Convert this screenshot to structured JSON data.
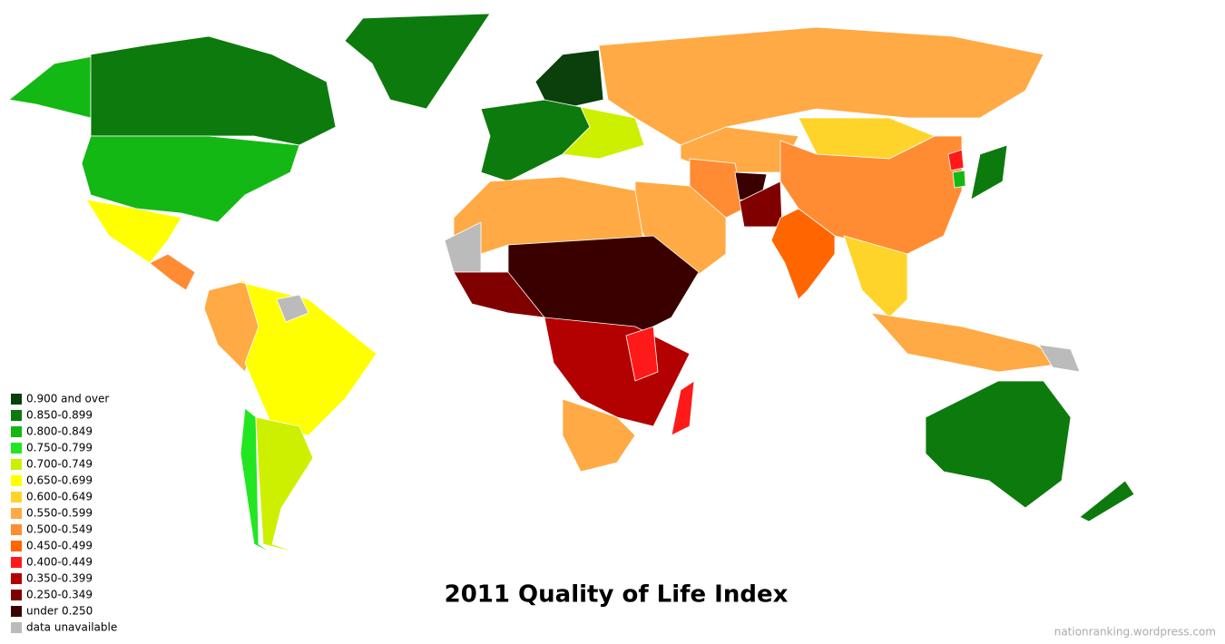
{
  "title": "2011 Quality of Life Index",
  "legend": [
    {
      "label": "0.900 and over",
      "color": "#0b3f0b"
    },
    {
      "label": "0.850-0.899",
      "color": "#0d7a0d"
    },
    {
      "label": "0.800-0.849",
      "color": "#14b814"
    },
    {
      "label": "0.750-0.799",
      "color": "#22e622"
    },
    {
      "label": "0.700-0.749",
      "color": "#ccf000"
    },
    {
      "label": "0.650-0.699",
      "color": "#ffff00"
    },
    {
      "label": "0.600-0.649",
      "color": "#ffd42a"
    },
    {
      "label": "0.550-0.599",
      "color": "#ffaa44"
    },
    {
      "label": "0.500-0.549",
      "color": "#ff8c33"
    },
    {
      "label": "0.450-0.499",
      "color": "#ff6600"
    },
    {
      "label": "0.400-0.449",
      "color": "#ff1a1a"
    },
    {
      "label": "0.350-0.399",
      "color": "#b30000"
    },
    {
      "label": "0.250-0.349",
      "color": "#800000"
    },
    {
      "label": "under 0.250",
      "color": "#3a0000"
    },
    {
      "label": "data unavailable",
      "color": "#bbbbbb"
    }
  ],
  "credit": "nationranking.wordpress.com"
}
